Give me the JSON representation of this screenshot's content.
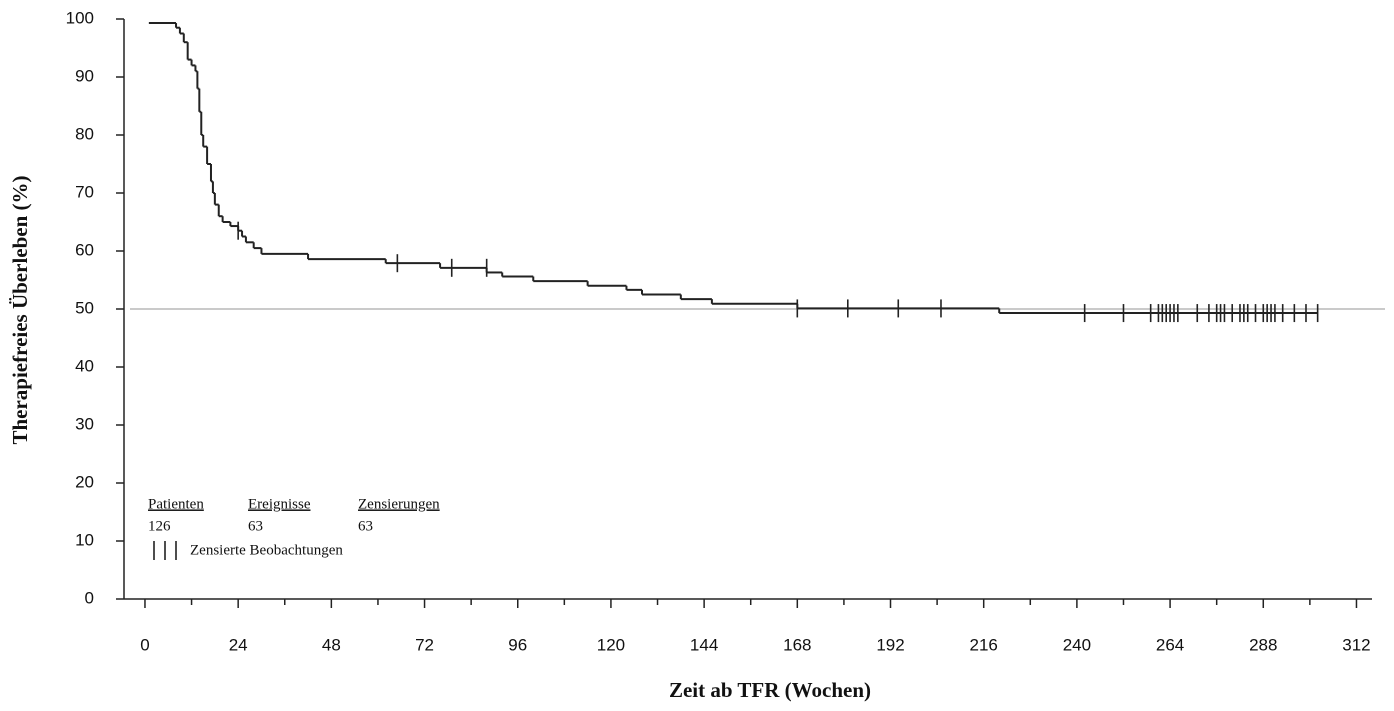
{
  "chart_data": {
    "type": "kaplan-meier",
    "xlabel": "Zeit ab TFR (Wochen)",
    "ylabel": "Therapiefreies Überleben (%)",
    "x": [
      1,
      8,
      9,
      10,
      11,
      12,
      13,
      13.5,
      14,
      14.5,
      15,
      16,
      17,
      17.5,
      18,
      19,
      20,
      22,
      24,
      25,
      26,
      28,
      30,
      42,
      62,
      76,
      88,
      92,
      100,
      114,
      124,
      128,
      138,
      146,
      168,
      220,
      302
    ],
    "series": [
      {
        "name": "Therapiefreies Überleben",
        "color": "#222222",
        "values": [
          99.3,
          98.5,
          97.5,
          96,
          93,
          92,
          91,
          88,
          84,
          80,
          78,
          75,
          72,
          70,
          68,
          66,
          65,
          64.3,
          63.5,
          62.5,
          61.5,
          60.5,
          59.5,
          58.6,
          57.9,
          57.1,
          56.3,
          55.6,
          54.8,
          54.0,
          53.3,
          52.5,
          51.7,
          50.9,
          50.1,
          49.3,
          49.3
        ]
      }
    ],
    "censored": {
      "x": [
        24,
        65,
        79,
        88,
        168,
        181,
        194,
        205,
        242,
        252,
        259,
        261,
        262,
        263,
        264,
        265,
        266,
        271,
        274,
        276,
        277,
        278,
        280,
        282,
        283,
        284,
        286,
        288,
        289,
        290,
        291,
        293,
        296,
        299,
        302
      ],
      "values": [
        63.5,
        57.9,
        57.1,
        57.1,
        50.1,
        50.1,
        50.1,
        50.1,
        49.3,
        49.3,
        49.3,
        49.3,
        49.3,
        49.3,
        49.3,
        49.3,
        49.3,
        49.3,
        49.3,
        49.3,
        49.3,
        49.3,
        49.3,
        49.3,
        49.3,
        49.3,
        49.3,
        49.3,
        49.3,
        49.3,
        49.3,
        49.3,
        49.3,
        49.3,
        49.3
      ]
    },
    "reference_line": {
      "value": 50,
      "color": "#aaaaaa"
    },
    "summary": {
      "headers": [
        "Patienten",
        "Ereignisse",
        "Zensierungen"
      ],
      "values": [
        126,
        63,
        63
      ]
    },
    "censor_legend": "Zensierte Beobachtungen",
    "xlim": [
      -5.4,
      316
    ],
    "xticks": [
      0,
      24,
      48,
      72,
      96,
      120,
      144,
      168,
      192,
      216,
      240,
      264,
      288,
      312
    ],
    "xminorticks": [
      12,
      36,
      60,
      84,
      108,
      132,
      156,
      180,
      204,
      228,
      252,
      276,
      300
    ],
    "ylim": [
      0,
      100
    ],
    "yticks": [
      0,
      10,
      20,
      30,
      40,
      50,
      60,
      70,
      80,
      90,
      100
    ]
  }
}
